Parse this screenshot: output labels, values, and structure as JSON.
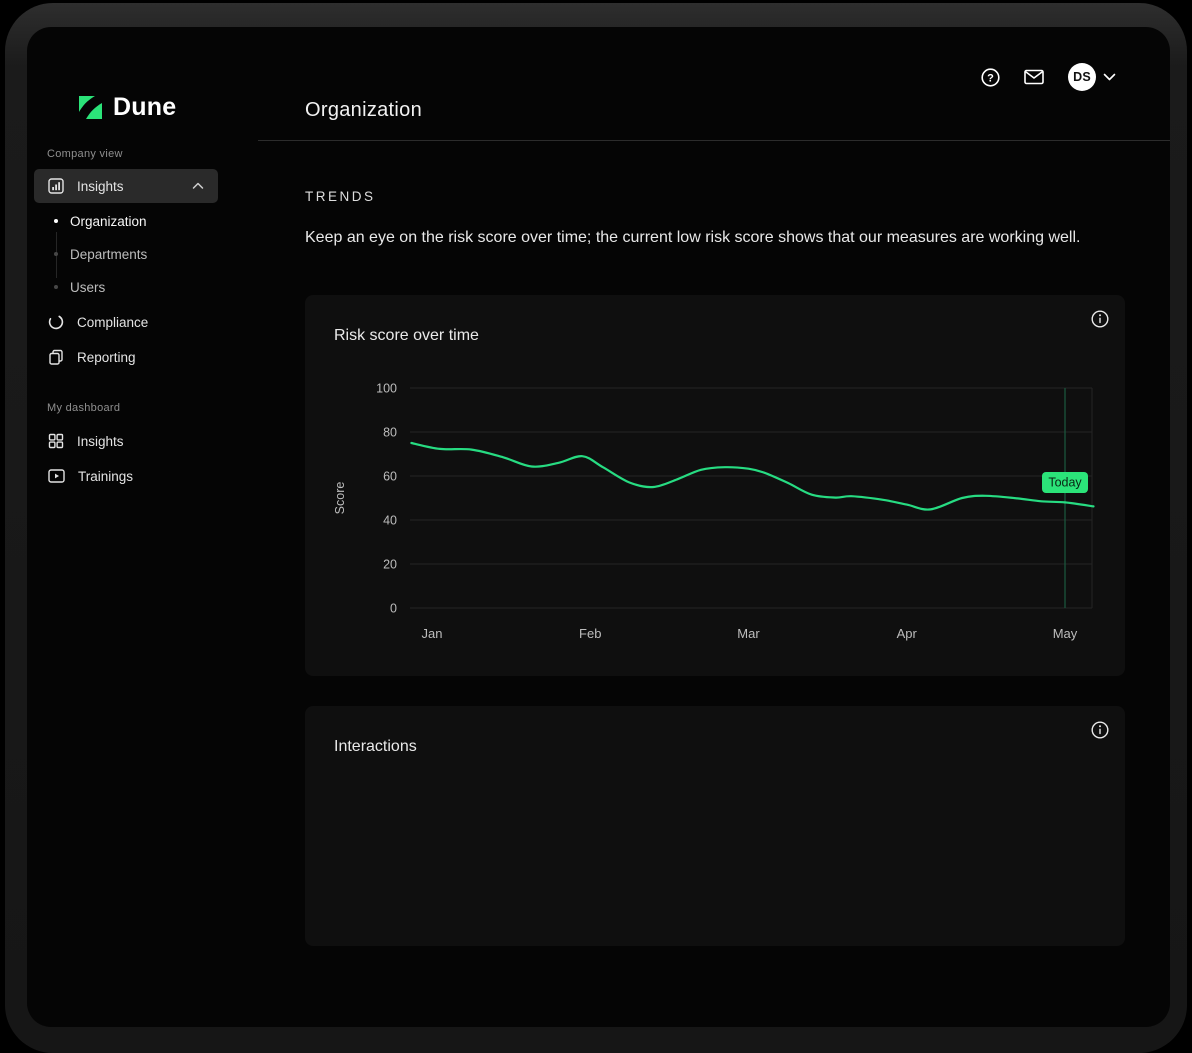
{
  "topbar": {
    "help_icon": "help-question-mark",
    "mail_icon": "envelope",
    "avatar_initials": "DS",
    "chevron_icon": "chevron-down"
  },
  "sidebar": {
    "logo_text": "Dune",
    "company_section_label": "Company view",
    "insights_label": "Insights",
    "insights_children": [
      {
        "label": "Organization",
        "active": true
      },
      {
        "label": "Departments",
        "active": false
      },
      {
        "label": "Users",
        "active": false
      }
    ],
    "compliance_label": "Compliance",
    "reporting_label": "Reporting",
    "dashboard_section_label": "My dashboard",
    "my_insights_label": "Insights",
    "trainings_label": "Trainings"
  },
  "main": {
    "page_title": "Organization",
    "section_heading": "TRENDS",
    "section_description": "Keep an eye on the risk score over time; the current low risk score shows that our measures are working well.",
    "cards": [
      {
        "title": "Risk score over time"
      },
      {
        "title": "Interactions"
      }
    ]
  },
  "colors": {
    "accent_green": "#2BE479",
    "line_green": "#27DC82",
    "today_line": "#1C5A40",
    "badge_text": "#0A2514",
    "grid": "#242424",
    "tick_text": "#bdbdbd"
  },
  "chart_data": {
    "type": "line",
    "title": "Risk score over time",
    "xlabel": "",
    "ylabel": "Score",
    "ylim": [
      0,
      100
    ],
    "yticks": [
      0,
      20,
      40,
      60,
      80,
      100
    ],
    "x_tick_labels": [
      "Jan",
      "Feb",
      "Mar",
      "Apr",
      "May"
    ],
    "grid": "horizontal",
    "legend": "none",
    "today_label": "Today",
    "today_x": 4.0,
    "series": [
      {
        "name": "Risk score",
        "color": "#27DC82",
        "points": [
          [
            -0.13,
            75
          ],
          [
            0.05,
            72.3
          ],
          [
            0.25,
            72
          ],
          [
            0.45,
            68.5
          ],
          [
            0.63,
            64.3
          ],
          [
            0.8,
            66
          ],
          [
            0.95,
            69
          ],
          [
            1.08,
            64
          ],
          [
            1.25,
            57
          ],
          [
            1.4,
            55
          ],
          [
            1.55,
            58.5
          ],
          [
            1.7,
            62.8
          ],
          [
            1.85,
            64
          ],
          [
            2.0,
            63.3
          ],
          [
            2.1,
            61.5
          ],
          [
            2.25,
            56.8
          ],
          [
            2.4,
            51.5
          ],
          [
            2.55,
            50.2
          ],
          [
            2.65,
            50.8
          ],
          [
            2.85,
            49.2
          ],
          [
            3.0,
            47
          ],
          [
            3.15,
            44.8
          ],
          [
            3.35,
            50
          ],
          [
            3.5,
            51
          ],
          [
            3.7,
            49.8
          ],
          [
            3.85,
            48.5
          ],
          [
            4.0,
            48
          ],
          [
            4.18,
            46.2
          ]
        ]
      }
    ]
  }
}
